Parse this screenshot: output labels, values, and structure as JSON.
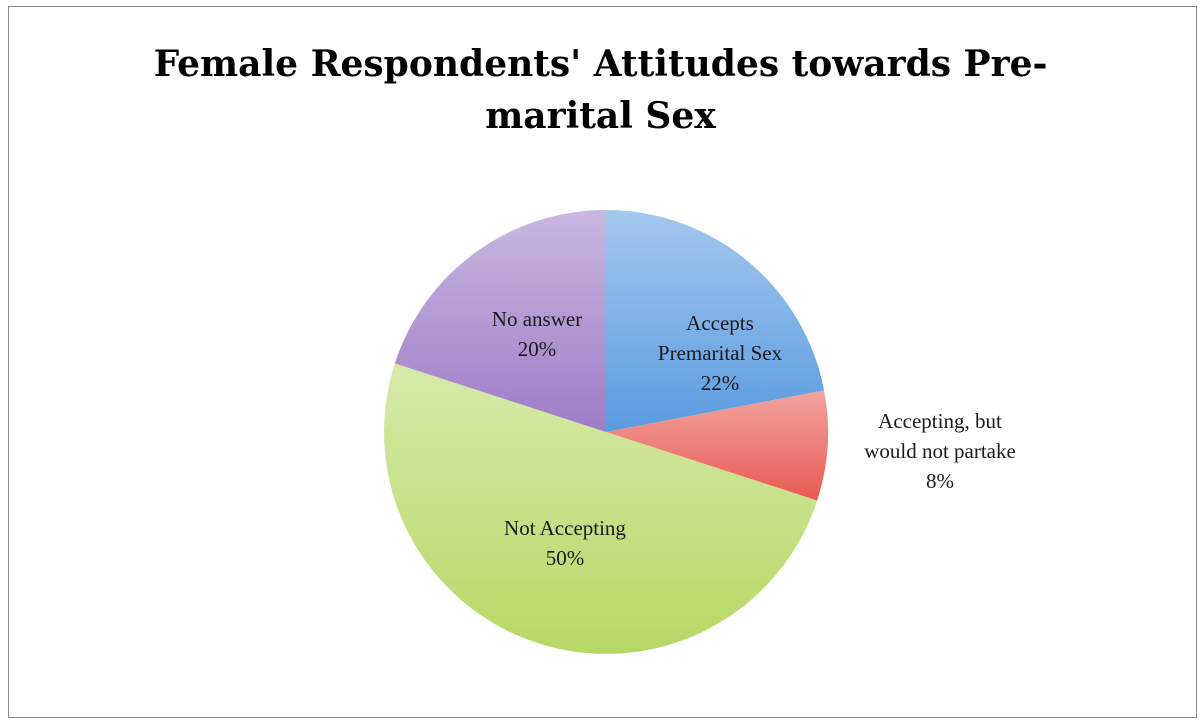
{
  "chart_data": {
    "type": "pie",
    "title_lines": [
      "Female Respondents' Attitudes towards Pre-",
      "marital Sex"
    ],
    "slices": [
      {
        "label_lines": [
          "Accepts",
          "Premarital Sex",
          "22%"
        ],
        "value": 22,
        "color": "#5a9be0"
      },
      {
        "label_lines": [
          "Accepting, but",
          "would not partake",
          "8%"
        ],
        "value": 8,
        "color": "#e85a52"
      },
      {
        "label_lines": [
          "Not Accepting",
          "50%"
        ],
        "value": 50,
        "color": "#b6d865"
      },
      {
        "label_lines": [
          "No answer",
          "20%"
        ],
        "value": 20,
        "color": "#9d7cc6"
      }
    ],
    "legend": "none"
  }
}
